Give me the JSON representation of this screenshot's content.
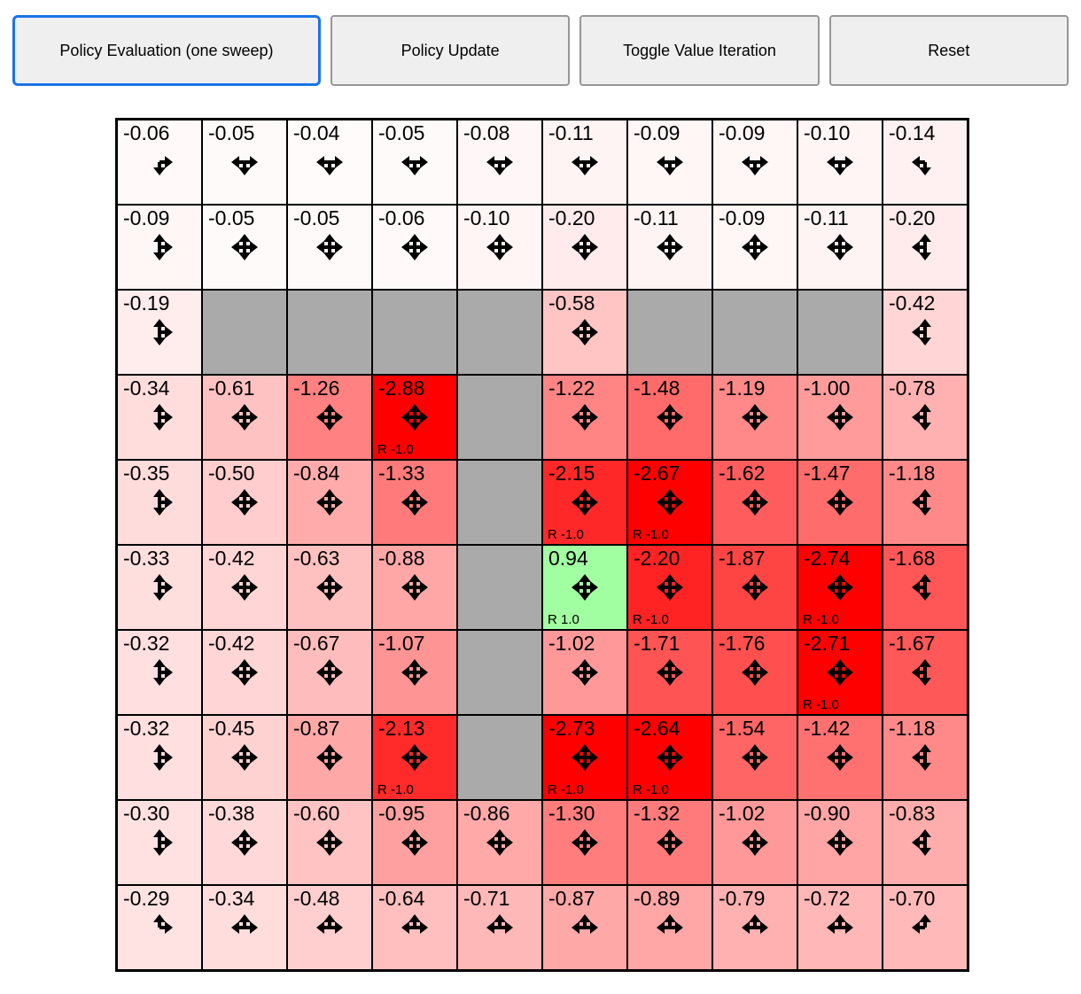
{
  "toolbar": {
    "buttons": [
      {
        "label": "Policy Evaluation (one sweep)",
        "focused": true
      },
      {
        "label": "Policy Update",
        "focused": false
      },
      {
        "label": "Toggle Value Iteration",
        "focused": false
      },
      {
        "label": "Reset",
        "focused": false
      }
    ]
  },
  "colors": {
    "wall": "#AAAAAA",
    "grid_border": "#000000",
    "focus_ring": "#1A73E8",
    "button_bg": "#EFEFEF",
    "button_border": "#979797",
    "negative_cell_base": "#FF0000",
    "positive_cell_base": "#00FF00",
    "value_tint_per_unit": 100
  },
  "grid": {
    "rows": 10,
    "cols": 10,
    "cells": [
      [
        {
          "v": "-0.06",
          "dirs": "RD"
        },
        {
          "v": "-0.05",
          "dirs": "LRD"
        },
        {
          "v": "-0.04",
          "dirs": "LRD"
        },
        {
          "v": "-0.05",
          "dirs": "LRD"
        },
        {
          "v": "-0.08",
          "dirs": "LRD"
        },
        {
          "v": "-0.11",
          "dirs": "LRD"
        },
        {
          "v": "-0.09",
          "dirs": "LRD"
        },
        {
          "v": "-0.09",
          "dirs": "LRD"
        },
        {
          "v": "-0.10",
          "dirs": "LRD"
        },
        {
          "v": "-0.14",
          "dirs": "LD"
        }
      ],
      [
        {
          "v": "-0.09",
          "dirs": "UDR"
        },
        {
          "v": "-0.05",
          "dirs": "UDLR"
        },
        {
          "v": "-0.05",
          "dirs": "UDLR"
        },
        {
          "v": "-0.06",
          "dirs": "UDLR"
        },
        {
          "v": "-0.10",
          "dirs": "UDLR"
        },
        {
          "v": "-0.20",
          "dirs": "UDLR"
        },
        {
          "v": "-0.11",
          "dirs": "UDLR"
        },
        {
          "v": "-0.09",
          "dirs": "UDLR"
        },
        {
          "v": "-0.11",
          "dirs": "UDLR"
        },
        {
          "v": "-0.20",
          "dirs": "UDL"
        }
      ],
      [
        {
          "v": "-0.19",
          "dirs": "UDR"
        },
        {
          "wall": true
        },
        {
          "wall": true
        },
        {
          "wall": true
        },
        {
          "wall": true
        },
        {
          "v": "-0.58",
          "dirs": "UDLR"
        },
        {
          "wall": true
        },
        {
          "wall": true
        },
        {
          "wall": true
        },
        {
          "v": "-0.42",
          "dirs": "UDL"
        }
      ],
      [
        {
          "v": "-0.34",
          "dirs": "UDR"
        },
        {
          "v": "-0.61",
          "dirs": "UDLR"
        },
        {
          "v": "-1.26",
          "dirs": "UDLR"
        },
        {
          "v": "-2.88",
          "dirs": "UDLR",
          "r": "R -1.0"
        },
        {
          "wall": true
        },
        {
          "v": "-1.22",
          "dirs": "UDLR"
        },
        {
          "v": "-1.48",
          "dirs": "UDLR"
        },
        {
          "v": "-1.19",
          "dirs": "UDLR"
        },
        {
          "v": "-1.00",
          "dirs": "UDLR"
        },
        {
          "v": "-0.78",
          "dirs": "UDL"
        }
      ],
      [
        {
          "v": "-0.35",
          "dirs": "UDR"
        },
        {
          "v": "-0.50",
          "dirs": "UDLR"
        },
        {
          "v": "-0.84",
          "dirs": "UDLR"
        },
        {
          "v": "-1.33",
          "dirs": "UDLR"
        },
        {
          "wall": true
        },
        {
          "v": "-2.15",
          "dirs": "UDLR",
          "r": "R -1.0"
        },
        {
          "v": "-2.67",
          "dirs": "UDLR",
          "r": "R -1.0"
        },
        {
          "v": "-1.62",
          "dirs": "UDLR"
        },
        {
          "v": "-1.47",
          "dirs": "UDLR"
        },
        {
          "v": "-1.18",
          "dirs": "UDL"
        }
      ],
      [
        {
          "v": "-0.33",
          "dirs": "UDR"
        },
        {
          "v": "-0.42",
          "dirs": "UDLR"
        },
        {
          "v": "-0.63",
          "dirs": "UDLR"
        },
        {
          "v": "-0.88",
          "dirs": "UDLR"
        },
        {
          "wall": true
        },
        {
          "v": "0.94",
          "dirs": "UDLR",
          "r": "R 1.0"
        },
        {
          "v": "-2.20",
          "dirs": "UDLR",
          "r": "R -1.0"
        },
        {
          "v": "-1.87",
          "dirs": "UDLR"
        },
        {
          "v": "-2.74",
          "dirs": "UDLR",
          "r": "R -1.0"
        },
        {
          "v": "-1.68",
          "dirs": "UDL"
        }
      ],
      [
        {
          "v": "-0.32",
          "dirs": "UDR"
        },
        {
          "v": "-0.42",
          "dirs": "UDLR"
        },
        {
          "v": "-0.67",
          "dirs": "UDLR"
        },
        {
          "v": "-1.07",
          "dirs": "UDLR"
        },
        {
          "wall": true
        },
        {
          "v": "-1.02",
          "dirs": "UDLR"
        },
        {
          "v": "-1.71",
          "dirs": "UDLR"
        },
        {
          "v": "-1.76",
          "dirs": "UDLR"
        },
        {
          "v": "-2.71",
          "dirs": "UDLR",
          "r": "R -1.0"
        },
        {
          "v": "-1.67",
          "dirs": "UDL"
        }
      ],
      [
        {
          "v": "-0.32",
          "dirs": "UDR"
        },
        {
          "v": "-0.45",
          "dirs": "UDLR"
        },
        {
          "v": "-0.87",
          "dirs": "UDLR"
        },
        {
          "v": "-2.13",
          "dirs": "UDLR",
          "r": "R -1.0"
        },
        {
          "wall": true
        },
        {
          "v": "-2.73",
          "dirs": "UDLR",
          "r": "R -1.0"
        },
        {
          "v": "-2.64",
          "dirs": "UDLR",
          "r": "R -1.0"
        },
        {
          "v": "-1.54",
          "dirs": "UDLR"
        },
        {
          "v": "-1.42",
          "dirs": "UDLR"
        },
        {
          "v": "-1.18",
          "dirs": "UDL"
        }
      ],
      [
        {
          "v": "-0.30",
          "dirs": "UDR"
        },
        {
          "v": "-0.38",
          "dirs": "UDLR"
        },
        {
          "v": "-0.60",
          "dirs": "UDLR"
        },
        {
          "v": "-0.95",
          "dirs": "UDLR"
        },
        {
          "v": "-0.86",
          "dirs": "UDLR"
        },
        {
          "v": "-1.30",
          "dirs": "UDLR"
        },
        {
          "v": "-1.32",
          "dirs": "UDLR"
        },
        {
          "v": "-1.02",
          "dirs": "UDLR"
        },
        {
          "v": "-0.90",
          "dirs": "UDLR"
        },
        {
          "v": "-0.83",
          "dirs": "UDL"
        }
      ],
      [
        {
          "v": "-0.29",
          "dirs": "UR"
        },
        {
          "v": "-0.34",
          "dirs": "ULR"
        },
        {
          "v": "-0.48",
          "dirs": "ULR"
        },
        {
          "v": "-0.64",
          "dirs": "ULR"
        },
        {
          "v": "-0.71",
          "dirs": "ULR"
        },
        {
          "v": "-0.87",
          "dirs": "ULR"
        },
        {
          "v": "-0.89",
          "dirs": "ULR"
        },
        {
          "v": "-0.79",
          "dirs": "ULR"
        },
        {
          "v": "-0.72",
          "dirs": "ULR"
        },
        {
          "v": "-0.70",
          "dirs": "UL"
        }
      ]
    ]
  }
}
